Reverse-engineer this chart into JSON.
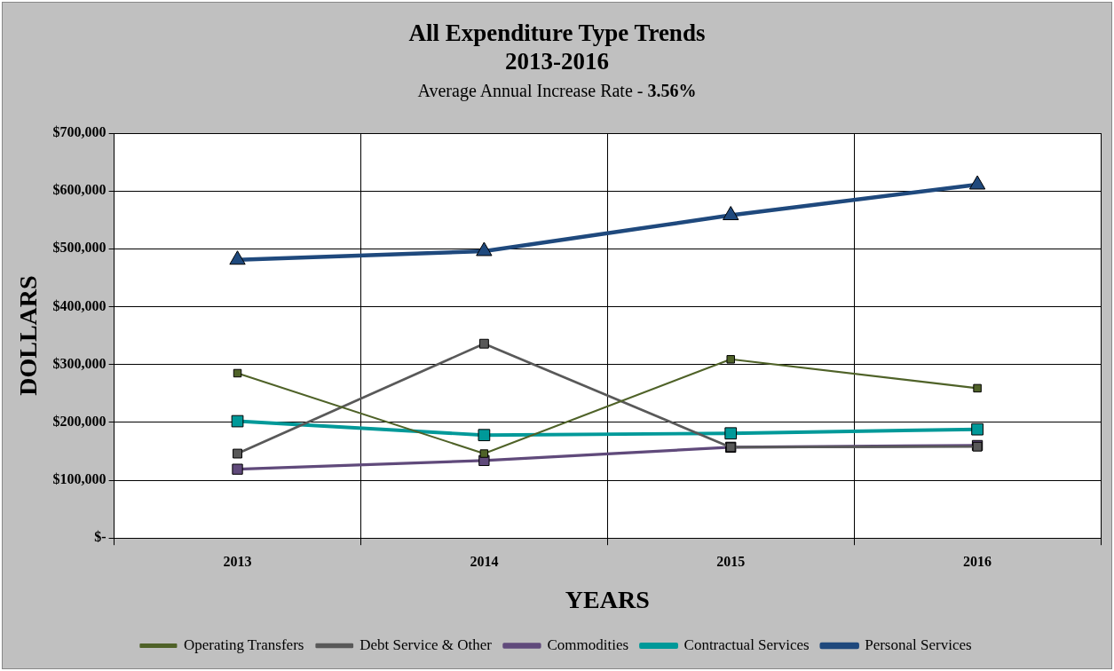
{
  "chart_data": {
    "type": "line",
    "title": "All Expenditure Type Trends\n2013-2016",
    "subtitle": "Average Annual Increase Rate - 3.56%",
    "xlabel": "YEARS",
    "ylabel": "DOLLARS",
    "categories": [
      "2013",
      "2014",
      "2015",
      "2016"
    ],
    "series": [
      {
        "name": "Personal Services",
        "color": "#1f497d",
        "marker": "triangle",
        "values": [
          481000,
          496000,
          558000,
          611000
        ]
      },
      {
        "name": "Contractual Services",
        "color": "#009999",
        "marker": "square",
        "values": [
          202000,
          178000,
          181000,
          188000
        ]
      },
      {
        "name": "Commodities",
        "color": "#604a7b",
        "marker": "square",
        "values": [
          119000,
          134000,
          157000,
          160000
        ]
      },
      {
        "name": "Debt Service & Other",
        "color": "#595959",
        "marker": "square",
        "values": [
          146000,
          336000,
          157000,
          158000
        ]
      },
      {
        "name": "Operating Transfers",
        "color": "#4f6228",
        "marker": "square",
        "values": [
          285000,
          146000,
          309000,
          259000
        ]
      }
    ],
    "ylim": [
      0,
      700000
    ],
    "yticks": [
      {
        "value": 0,
        "label": "$-"
      },
      {
        "value": 100000,
        "label": "$100,000"
      },
      {
        "value": 200000,
        "label": "$200,000"
      },
      {
        "value": 300000,
        "label": "$300,000"
      },
      {
        "value": 400000,
        "label": "$400,000"
      },
      {
        "value": 500000,
        "label": "$500,000"
      },
      {
        "value": 600000,
        "label": "$600,000"
      },
      {
        "value": 700000,
        "label": "$700,000"
      }
    ],
    "grid": true,
    "legend": "bottom",
    "line_style": "solid"
  }
}
